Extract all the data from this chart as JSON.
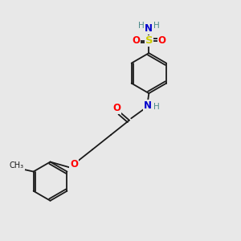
{
  "background_color": "#e8e8e8",
  "bond_color": "#1a1a1a",
  "atom_colors": {
    "O": "#ff0000",
    "N": "#0000cc",
    "S": "#cccc00",
    "H": "#4a8a8a",
    "C": "#1a1a1a"
  },
  "lw": 1.3,
  "fs": 8.5,
  "figsize": [
    3.0,
    3.0
  ],
  "dpi": 100
}
